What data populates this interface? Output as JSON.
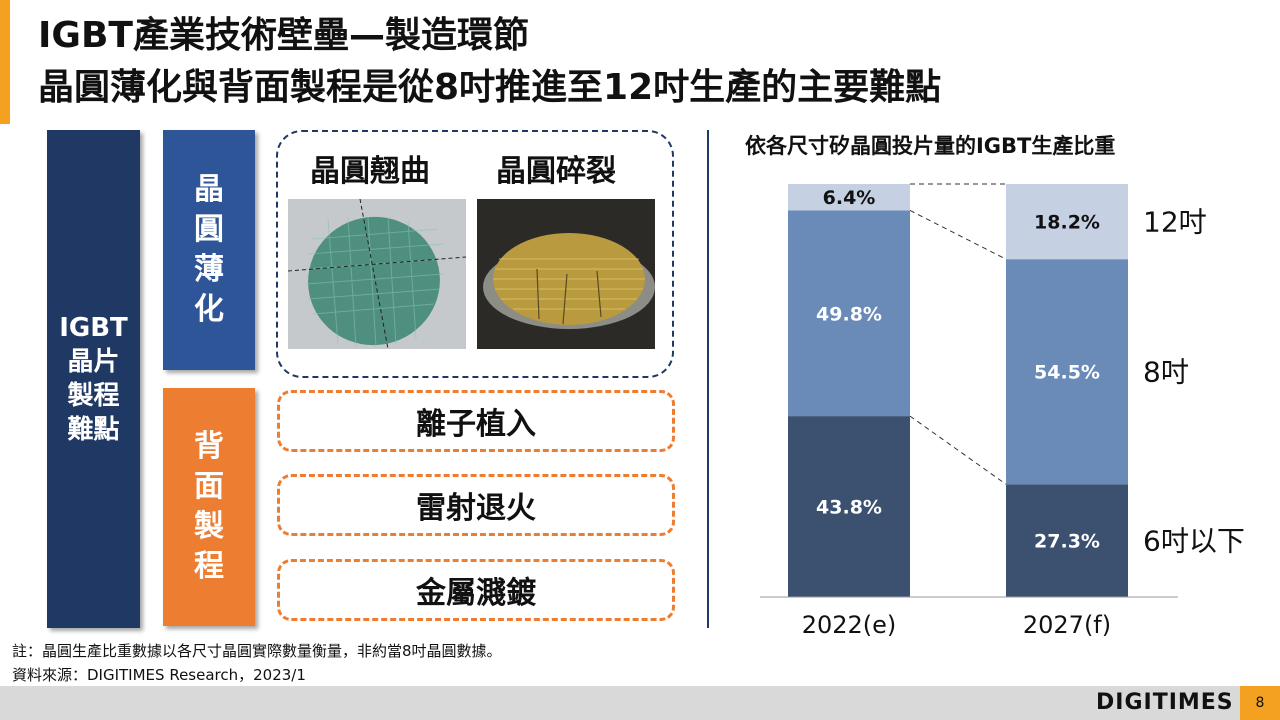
{
  "title": {
    "line1": "IGBT產業技術壁壘—製造環節",
    "line2": "晶圓薄化與背面製程是從8吋推進至12吋生產的主要難點"
  },
  "left_panel": {
    "main_label": "IGBT\n晶片\n製程\n難點",
    "thinning_label": "晶\n圓\n薄\n化",
    "backside_label": "背\n面\n製\n程",
    "image_labels": [
      "晶圓翹曲",
      "晶圓碎裂"
    ],
    "backside_steps": [
      "離子植入",
      "雷射退火",
      "金屬濺鍍"
    ]
  },
  "chart_data": {
    "type": "bar",
    "stacked": true,
    "title": "依各尺寸矽晶圓投片量的IGBT生產比重",
    "categories": [
      "2022(e)",
      "2027(f)"
    ],
    "series": [
      {
        "name": "6吋以下",
        "values": [
          43.8,
          27.3
        ],
        "labels": [
          "43.8%",
          "27.3%"
        ],
        "color": "#3c5070",
        "text_color": "#ffffff"
      },
      {
        "name": "8吋",
        "values": [
          49.8,
          54.5
        ],
        "labels": [
          "49.8%",
          "54.5%"
        ],
        "color": "#6a8ab8",
        "text_color": "#ffffff"
      },
      {
        "name": "12吋",
        "values": [
          6.4,
          18.2
        ],
        "labels": [
          "6.4%",
          "18.2%"
        ],
        "color": "#c5d0e3",
        "text_color": "#111111"
      }
    ],
    "ylim": [
      0,
      100
    ],
    "legend_position": "right"
  },
  "notes": {
    "note": "註：晶圓生產比重數據以各尺寸晶圓實際數量衡量，非約當8吋晶圓數據。",
    "source": "資料來源：DIGITIMES Research，2023/1"
  },
  "footer": {
    "logo": "DIGITIMES",
    "page": "8"
  }
}
